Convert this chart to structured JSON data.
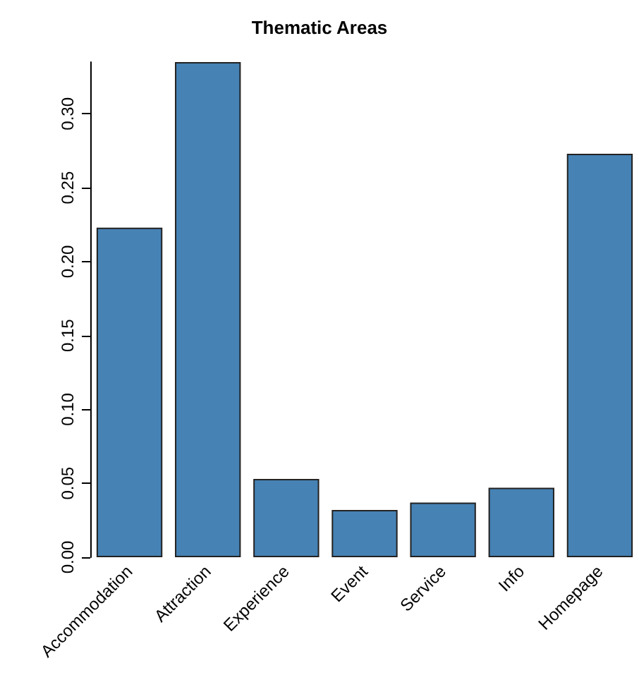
{
  "chart_data": {
    "type": "bar",
    "title": "Thematic Areas",
    "categories": [
      "Accommodation",
      "Attraction",
      "Experience",
      "Event",
      "Service",
      "Info",
      "Homepage"
    ],
    "values": [
      0.223,
      0.335,
      0.053,
      0.032,
      0.037,
      0.047,
      0.273
    ],
    "color": "#4682b4",
    "ylim": [
      0,
      0.335
    ],
    "yticks": [
      {
        "value": 0,
        "label": "0.00"
      },
      {
        "value": 0.05,
        "label": "0.05"
      },
      {
        "value": 0.1,
        "label": "0.10"
      },
      {
        "value": 0.15,
        "label": "0.15"
      },
      {
        "value": 0.2,
        "label": "0.20"
      },
      {
        "value": 0.25,
        "label": "0.25"
      },
      {
        "value": 0.3,
        "label": "0.30"
      }
    ],
    "grid": false
  }
}
